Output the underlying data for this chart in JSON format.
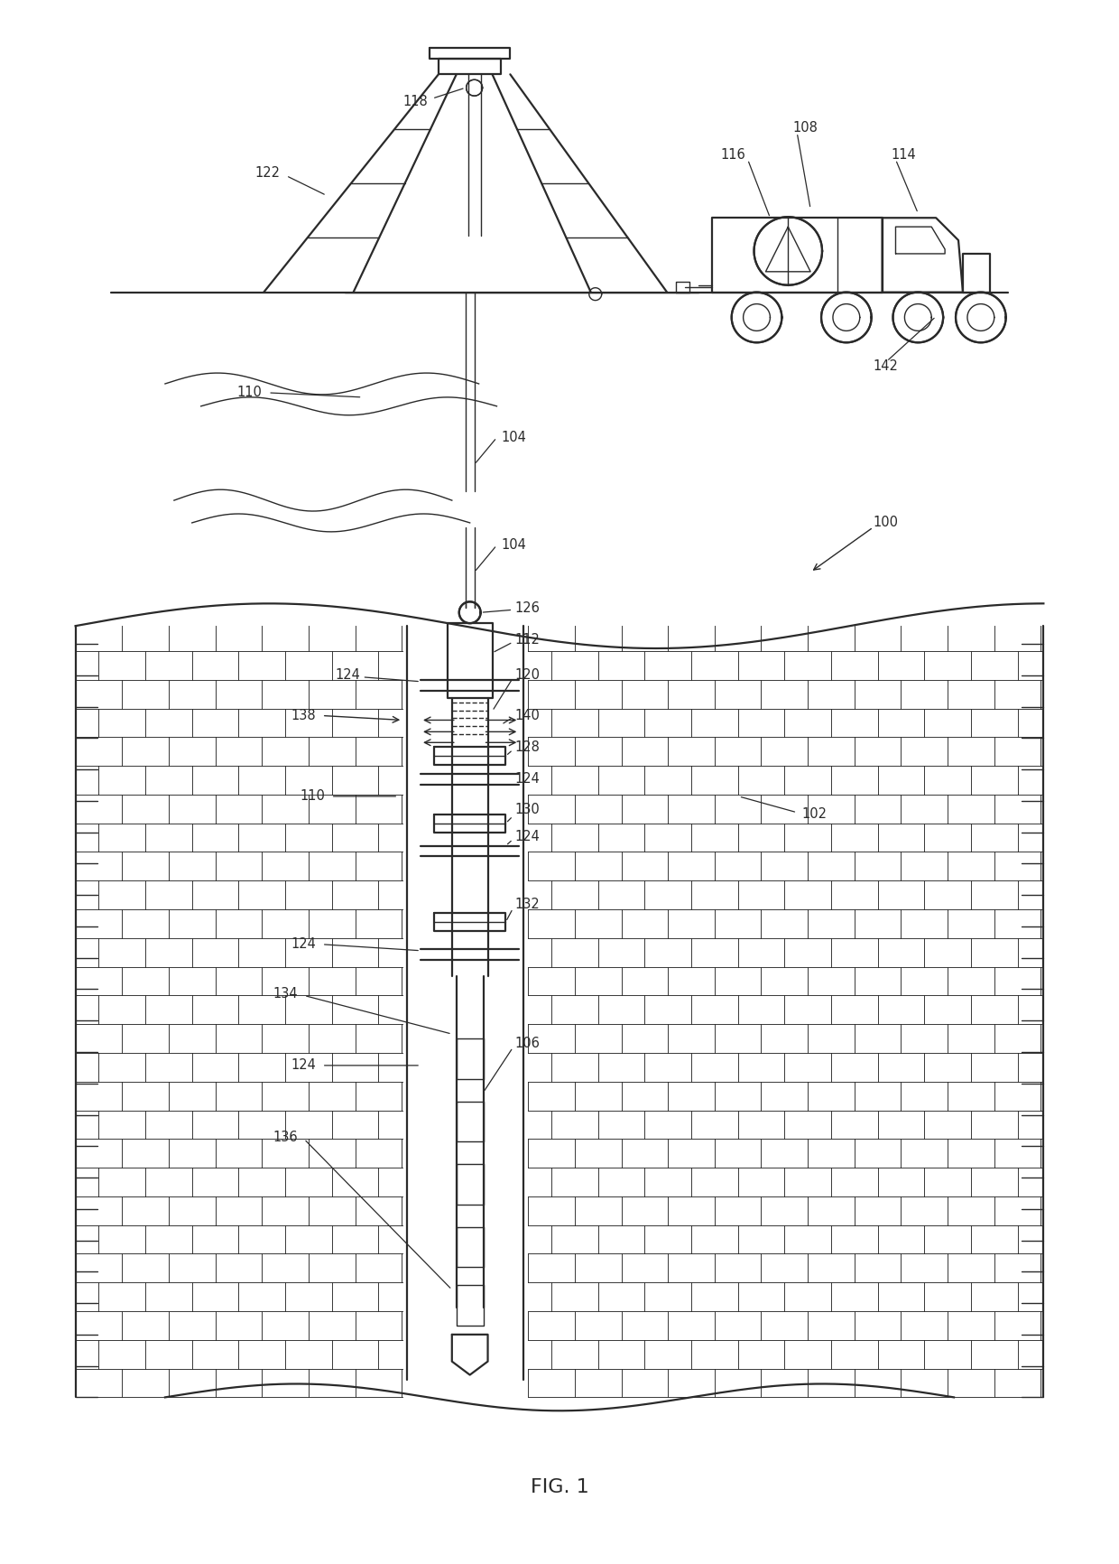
{
  "fig_label": "FIG. 1",
  "background_color": "#ffffff",
  "line_color": "#2a2a2a",
  "fig_width": 12.4,
  "fig_height": 17.32,
  "dpi": 100
}
